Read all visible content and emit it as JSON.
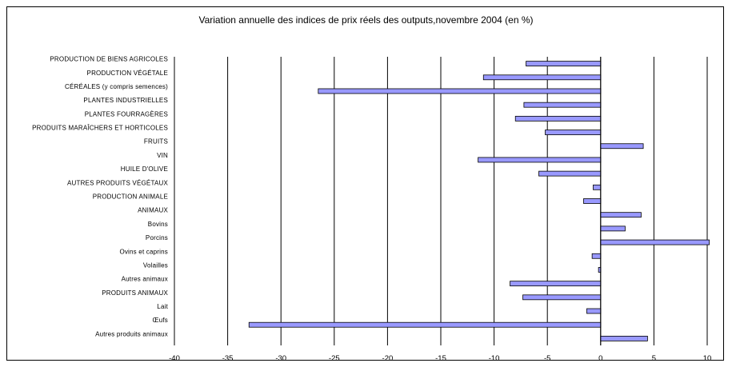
{
  "chart_data": {
    "type": "bar",
    "orientation": "horizontal",
    "title": "Variation annuelle des indices de prix réels des outputs,novembre 2004 (en %)",
    "xlabel": "",
    "ylabel": "",
    "xlim": [
      -40,
      10
    ],
    "xticks": [
      -40,
      -35,
      -30,
      -25,
      -20,
      -15,
      -10,
      -5,
      0,
      5,
      10
    ],
    "grid": "vertical",
    "bar_color": "#9999ff",
    "categories": [
      "PRODUCTION DE BIENS AGRICOLES",
      "PRODUCTION VÉGÉTALE",
      "CÉRÉALES (y compris semences)",
      "PLANTES INDUSTRIELLES",
      "PLANTES FOURRAGÈRES",
      "PRODUITS MARAÎCHERS ET HORTICOLES",
      "FRUITS",
      "VIN",
      "HUILE D'OLIVE",
      "AUTRES PRODUITS VÉGÉTAUX",
      "PRODUCTION ANIMALE",
      "ANIMAUX",
      "Bovins",
      "Porcins",
      "Ovins et caprins",
      "Volailles",
      "Autres animaux",
      "PRODUITS ANIMAUX",
      "Lait",
      "Œufs",
      "Autres produits animaux"
    ],
    "values": [
      -7.0,
      -11.0,
      -26.5,
      -7.2,
      -8.0,
      -5.2,
      4.0,
      -11.5,
      -5.8,
      -0.7,
      -1.6,
      3.8,
      2.3,
      10.2,
      -0.8,
      -0.2,
      -8.5,
      -7.3,
      -1.3,
      -33.0,
      4.4
    ]
  }
}
